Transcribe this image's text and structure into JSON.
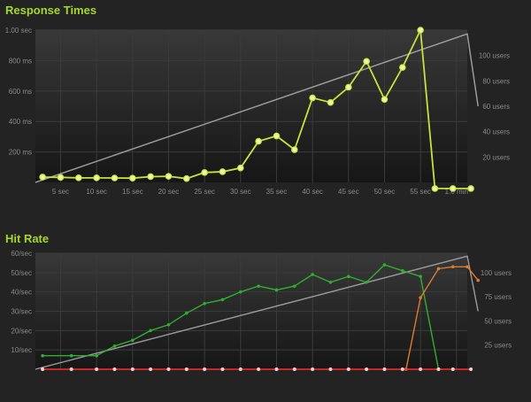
{
  "chart_data": [
    {
      "type": "line",
      "title": "Response Times",
      "x_ticks": [
        "5 sec",
        "10 sec",
        "15 sec",
        "20 sec",
        "25 sec",
        "30 sec",
        "35 sec",
        "40 sec",
        "45 sec",
        "50 sec",
        "55 sec",
        "1.0 min"
      ],
      "y_left_ticks": [
        "200 ms",
        "400 ms",
        "600 ms",
        "800 ms",
        "1.00 sec"
      ],
      "y_right_ticks": [
        "20 users",
        "40 users",
        "60 users",
        "80 users",
        "100 users"
      ],
      "xlim": [
        0,
        60
      ],
      "ylim_left_ms": [
        0,
        1000
      ],
      "ylim_right_users": [
        0,
        120
      ],
      "grid": true,
      "series": [
        {
          "axis": "left",
          "color": "#c5e33a",
          "x": [
            1,
            3.5,
            6,
            8.5,
            11,
            13.5,
            16,
            18.5,
            21,
            23.5,
            26,
            28.5,
            31,
            33.5,
            36,
            38.5,
            41,
            43.5,
            46,
            48.5,
            51,
            53.5,
            55.5,
            58,
            60.5
          ],
          "y": [
            35,
            33,
            30,
            30,
            29,
            28,
            38,
            40,
            25,
            65,
            70,
            95,
            270,
            305,
            215,
            555,
            525,
            625,
            795,
            545,
            755,
            1000,
            -40,
            -40,
            -40
          ]
        },
        {
          "axis": "right",
          "color": "#9a9a9a",
          "x": [
            0,
            60,
            61.5
          ],
          "y": [
            0,
            117,
            60
          ]
        }
      ]
    },
    {
      "type": "line",
      "title": "Hit Rate",
      "y_left_ticks": [
        "10/sec",
        "20/sec",
        "30/sec",
        "40/sec",
        "50/sec",
        "60/sec"
      ],
      "y_right_ticks": [
        "25 users",
        "50 users",
        "75 users",
        "100 users"
      ],
      "xlim": [
        0,
        60
      ],
      "ylim_left": [
        0,
        60
      ],
      "ylim_right_users": [
        0,
        120
      ],
      "grid": true,
      "series": [
        {
          "axis": "left",
          "color": "#2fae2f",
          "x": [
            1,
            5,
            8.5,
            11,
            13.5,
            16,
            18.5,
            21,
            23.5,
            26,
            28.5,
            31,
            33.5,
            36,
            38.5,
            41,
            43.5,
            46,
            48.5,
            51,
            53.5,
            56
          ],
          "y": [
            7,
            7,
            7,
            12,
            15,
            20,
            23,
            29,
            34,
            36,
            40,
            43,
            41,
            43,
            49,
            45,
            48,
            45,
            54,
            51,
            48,
            0
          ]
        },
        {
          "axis": "left",
          "color": "#e07a2e",
          "x": [
            51.5,
            53.5,
            56,
            58,
            60,
            61.5
          ],
          "y": [
            0,
            37,
            52,
            53,
            53,
            46
          ]
        },
        {
          "axis": "left",
          "color": "#ff2a2a",
          "x": [
            1,
            5,
            8.5,
            11,
            13.5,
            16,
            18.5,
            21,
            23.5,
            26,
            28.5,
            31,
            33.5,
            36,
            38.5,
            41,
            43.5,
            46,
            48.5,
            51,
            53.5,
            56,
            58,
            60.5
          ],
          "y": [
            0,
            0,
            0,
            0,
            0,
            0,
            0,
            0,
            0,
            0,
            0,
            0,
            0,
            0,
            0,
            0,
            0,
            0,
            0,
            0,
            0,
            0,
            0,
            0
          ]
        },
        {
          "axis": "right",
          "color": "#9a9a9a",
          "x": [
            0,
            60,
            61.5
          ],
          "y": [
            0,
            117,
            60
          ]
        }
      ]
    }
  ]
}
